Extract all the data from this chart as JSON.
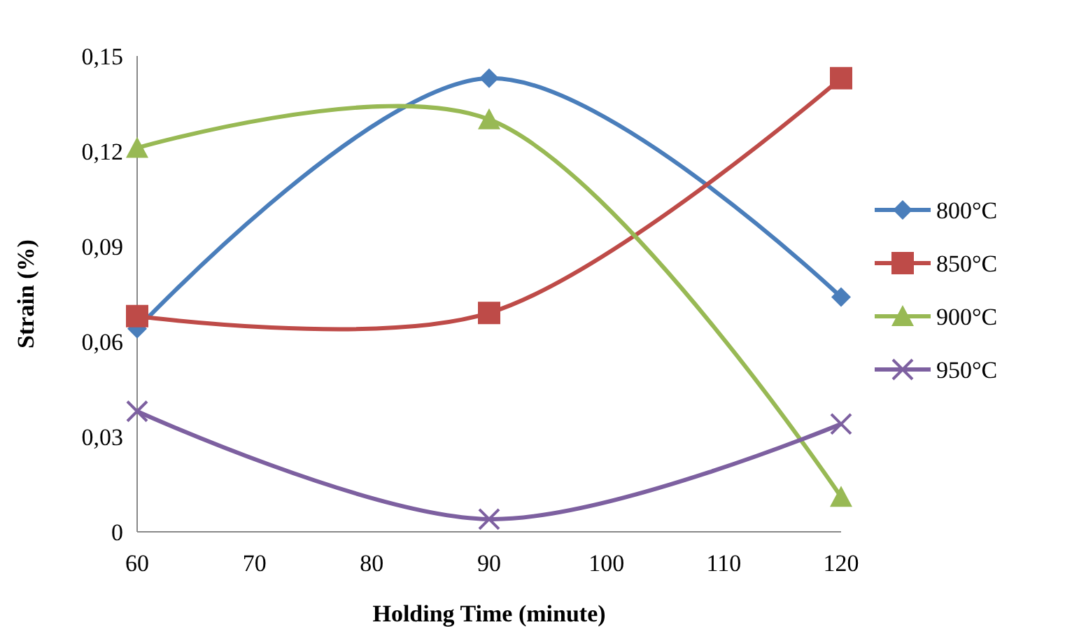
{
  "chart_data": {
    "type": "line",
    "xlabel": "Holding Time (minute)",
    "ylabel": "Strain (%)",
    "x": [
      60,
      90,
      120
    ],
    "series": [
      {
        "name": "800°C",
        "color": "#4a7ebb",
        "marker": "diamond",
        "values": [
          0.064,
          0.143,
          0.074
        ]
      },
      {
        "name": "850°C",
        "color": "#be4b48",
        "marker": "square",
        "values": [
          0.068,
          0.069,
          0.143
        ]
      },
      {
        "name": "900°C",
        "color": "#98b954",
        "marker": "triangle",
        "values": [
          0.121,
          0.13,
          0.011
        ]
      },
      {
        "name": "950°C",
        "color": "#7d60a0",
        "marker": "cross",
        "values": [
          0.038,
          0.004,
          0.034
        ]
      }
    ],
    "xlim": [
      60,
      120
    ],
    "xticks": [
      60,
      70,
      80,
      90,
      100,
      110,
      120
    ],
    "ylim": [
      0,
      0.15
    ],
    "yticks": [
      {
        "value": 0,
        "label": "0"
      },
      {
        "value": 0.03,
        "label": "0,03"
      },
      {
        "value": 0.06,
        "label": "0,06"
      },
      {
        "value": 0.09,
        "label": "0,09"
      },
      {
        "value": 0.12,
        "label": "0,12"
      },
      {
        "value": 0.15,
        "label": "0,15"
      }
    ],
    "grid": false,
    "legend": "right"
  }
}
